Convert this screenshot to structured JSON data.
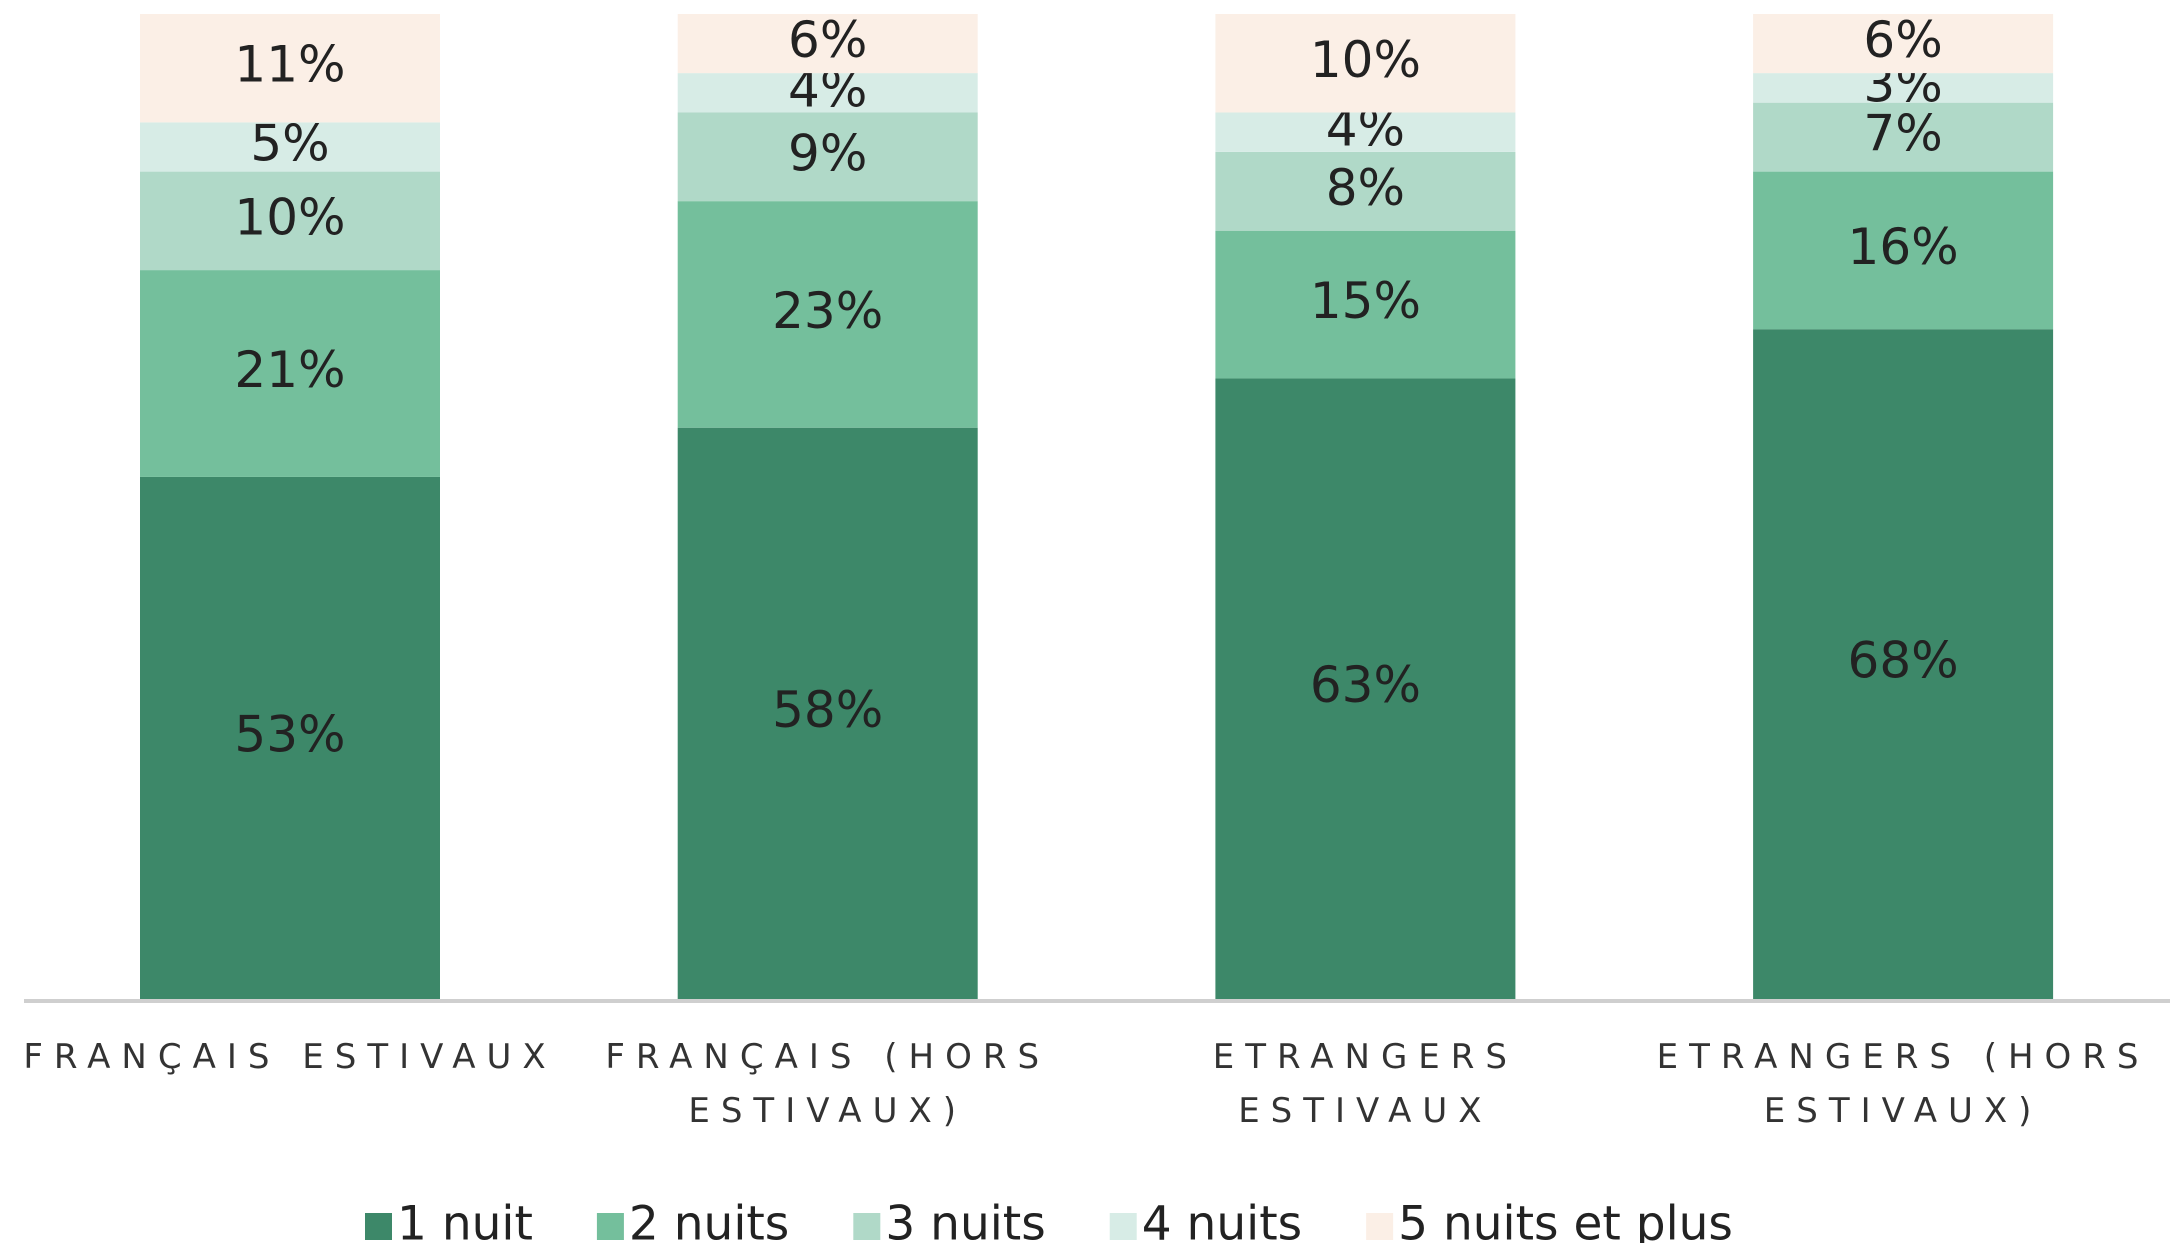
{
  "chart_data": {
    "type": "stacked_bar",
    "categories": [
      "FRANÇAIS ESTIVAUX",
      "FRANÇAIS (HORS ESTIVAUX)",
      "ETRANGERS ESTIVAUX",
      "ETRANGERS (HORS ESTIVAUX)"
    ],
    "ylim": [
      0,
      100
    ],
    "legend": "bottom",
    "series": [
      {
        "name": "1 nuit",
        "color": "#3d8869",
        "values": [
          53,
          58,
          63,
          68
        ],
        "value_labels": [
          "53%",
          "58%",
          "63%",
          "68%"
        ]
      },
      {
        "name": "2 nuits",
        "color": "#74bf9c",
        "values": [
          21,
          23,
          15,
          16
        ],
        "value_labels": [
          "21%",
          "23%",
          "15%",
          "16%"
        ]
      },
      {
        "name": "3 nuits",
        "color": "#b0d9c8",
        "values": [
          10,
          9,
          8,
          7
        ],
        "value_labels": [
          "10%",
          "9%",
          "8%",
          "7%"
        ]
      },
      {
        "name": "4 nuits",
        "color": "#d7ece6",
        "values": [
          5,
          4,
          4,
          3
        ],
        "value_labels": [
          "5%",
          "4%",
          "4%",
          "3%"
        ]
      },
      {
        "name": "5 nuits et plus",
        "color": "#fbefe6",
        "values": [
          11,
          6,
          10,
          6
        ],
        "value_labels": [
          "11%",
          "6%",
          "10%",
          "6%"
        ]
      }
    ]
  }
}
